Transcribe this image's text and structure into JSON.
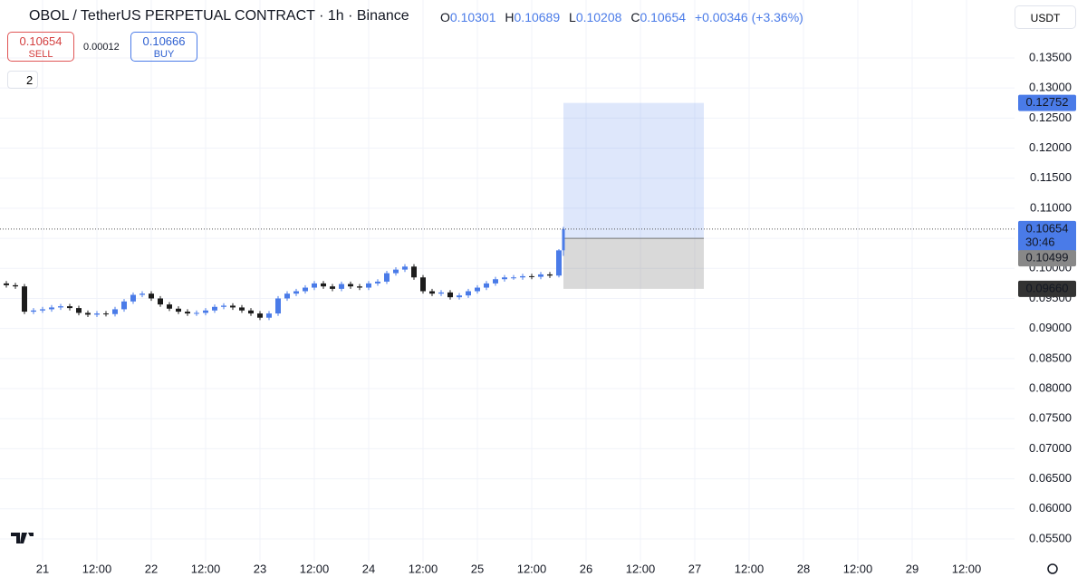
{
  "header": {
    "title": "OBOL / TetherUS PERPETUAL CONTRACT · 1h · Binance",
    "o_label": "O",
    "o": "0.10301",
    "h_label": "H",
    "h": "0.10689",
    "l_label": "L",
    "l": "0.10208",
    "c_label": "C",
    "c": "0.10654",
    "change": "+0.00346 (+3.36%)",
    "sell_price": "0.10654",
    "sell": "SELL",
    "spread": "0.00012",
    "buy_price": "0.10666",
    "buy": "BUY",
    "indicators": "2",
    "currency": "USDT"
  },
  "chart_data": {
    "type": "candlestick",
    "x": [
      -8,
      -6,
      -4,
      -2,
      0,
      2,
      4,
      6,
      8,
      10,
      12,
      14,
      16,
      18,
      20,
      22,
      24,
      26,
      28,
      30,
      32,
      34,
      36,
      38,
      40,
      42,
      44,
      46,
      48,
      50,
      52,
      54,
      56,
      58,
      60,
      62,
      64,
      66,
      68,
      70,
      72,
      74,
      76,
      78,
      80,
      82,
      84,
      86,
      88,
      90,
      92,
      94,
      96,
      98,
      100,
      102,
      104,
      106,
      108,
      110,
      112,
      114,
      115
    ],
    "open": [
      0.0975,
      0.0972,
      0.097,
      0.0928,
      0.093,
      0.0932,
      0.0935,
      0.0937,
      0.0934,
      0.0926,
      0.0923,
      0.0925,
      0.0924,
      0.0932,
      0.0945,
      0.0956,
      0.0958,
      0.095,
      0.094,
      0.0933,
      0.0928,
      0.0925,
      0.0926,
      0.093,
      0.0936,
      0.0938,
      0.0935,
      0.093,
      0.0925,
      0.0918,
      0.0925,
      0.095,
      0.0958,
      0.0962,
      0.0968,
      0.0975,
      0.097,
      0.0966,
      0.0974,
      0.097,
      0.0968,
      0.0975,
      0.0978,
      0.0992,
      0.0998,
      0.1003,
      0.0985,
      0.0962,
      0.0958,
      0.096,
      0.0952,
      0.0955,
      0.0962,
      0.0968,
      0.0975,
      0.0982,
      0.0985,
      0.0985,
      0.0987,
      0.0986,
      0.099,
      0.0988,
      0.10301
    ],
    "high": [
      0.0979,
      0.0976,
      0.0974,
      0.0934,
      0.0936,
      0.0939,
      0.0941,
      0.0941,
      0.0938,
      0.093,
      0.0929,
      0.0929,
      0.0936,
      0.0949,
      0.096,
      0.0962,
      0.0962,
      0.0954,
      0.0944,
      0.0937,
      0.0932,
      0.093,
      0.0934,
      0.094,
      0.0942,
      0.0942,
      0.0939,
      0.0934,
      0.0929,
      0.0929,
      0.0954,
      0.0962,
      0.0966,
      0.0972,
      0.0979,
      0.0979,
      0.0974,
      0.0978,
      0.0978,
      0.0974,
      0.0979,
      0.0982,
      0.0996,
      0.1002,
      0.1007,
      0.1007,
      0.0989,
      0.0966,
      0.0964,
      0.0964,
      0.0959,
      0.0966,
      0.0972,
      0.0979,
      0.0986,
      0.0989,
      0.0989,
      0.0991,
      0.0991,
      0.0994,
      0.0994,
      0.1032,
      0.10689
    ],
    "low": [
      0.0968,
      0.0966,
      0.0924,
      0.0924,
      0.0926,
      0.0928,
      0.0931,
      0.093,
      0.0922,
      0.0919,
      0.0919,
      0.092,
      0.092,
      0.0928,
      0.0941,
      0.0952,
      0.0946,
      0.0936,
      0.0929,
      0.0924,
      0.0921,
      0.0921,
      0.0922,
      0.0926,
      0.0932,
      0.0931,
      0.0926,
      0.0921,
      0.0914,
      0.0914,
      0.0921,
      0.0946,
      0.0954,
      0.0958,
      0.0964,
      0.0966,
      0.0962,
      0.0962,
      0.0966,
      0.0964,
      0.0964,
      0.0971,
      0.0974,
      0.0988,
      0.0994,
      0.0981,
      0.0958,
      0.0954,
      0.0954,
      0.0948,
      0.0948,
      0.0951,
      0.0958,
      0.0964,
      0.0971,
      0.0978,
      0.0981,
      0.0981,
      0.0982,
      0.0982,
      0.0984,
      0.0985,
      0.10208
    ],
    "close": [
      0.0972,
      0.097,
      0.0928,
      0.093,
      0.0932,
      0.0935,
      0.0937,
      0.0934,
      0.0926,
      0.0923,
      0.0925,
      0.0924,
      0.0932,
      0.0945,
      0.0956,
      0.0958,
      0.095,
      0.094,
      0.0933,
      0.0928,
      0.0925,
      0.0926,
      0.093,
      0.0936,
      0.0938,
      0.0935,
      0.093,
      0.0925,
      0.0918,
      0.0925,
      0.095,
      0.0958,
      0.0962,
      0.0968,
      0.0975,
      0.097,
      0.0966,
      0.0974,
      0.097,
      0.0968,
      0.0975,
      0.0978,
      0.0992,
      0.0998,
      0.1003,
      0.0985,
      0.0962,
      0.0958,
      0.096,
      0.0952,
      0.0955,
      0.0962,
      0.0968,
      0.0975,
      0.0982,
      0.0985,
      0.0985,
      0.0987,
      0.0986,
      0.099,
      0.0988,
      0.103,
      0.10654
    ],
    "up_color": "#4a7be8",
    "down_color": "#1c1c1c",
    "xlim": [
      -9.4,
      214.6
    ],
    "ylim": [
      0.05123,
      0.14464
    ],
    "xticks": [
      {
        "value": 0,
        "label": "21"
      },
      {
        "value": 12,
        "label": "12:00"
      },
      {
        "value": 24,
        "label": "22"
      },
      {
        "value": 36,
        "label": "12:00"
      },
      {
        "value": 48,
        "label": "23"
      },
      {
        "value": 60,
        "label": "12:00"
      },
      {
        "value": 72,
        "label": "24"
      },
      {
        "value": 84,
        "label": "12:00"
      },
      {
        "value": 96,
        "label": "25"
      },
      {
        "value": 108,
        "label": "12:00"
      },
      {
        "value": 120,
        "label": "26"
      },
      {
        "value": 132,
        "label": "12:00"
      },
      {
        "value": 144,
        "label": "27"
      },
      {
        "value": 156,
        "label": "12:00"
      },
      {
        "value": 168,
        "label": "28"
      },
      {
        "value": 180,
        "label": "12:00"
      },
      {
        "value": 192,
        "label": "29"
      },
      {
        "value": 204,
        "label": "12:00"
      }
    ],
    "yticks": [
      {
        "value": 0.055,
        "label": "0.05500"
      },
      {
        "value": 0.06,
        "label": "0.06000"
      },
      {
        "value": 0.065,
        "label": "0.06500"
      },
      {
        "value": 0.07,
        "label": "0.07000"
      },
      {
        "value": 0.075,
        "label": "0.07500"
      },
      {
        "value": 0.08,
        "label": "0.08000"
      },
      {
        "value": 0.085,
        "label": "0.08500"
      },
      {
        "value": 0.09,
        "label": "0.09000"
      },
      {
        "value": 0.095,
        "label": "0.09500"
      },
      {
        "value": 0.1,
        "label": "0.10000"
      },
      {
        "value": 0.105,
        "label": "0.10500"
      },
      {
        "value": 0.11,
        "label": "0.11000"
      },
      {
        "value": 0.115,
        "label": "0.11500"
      },
      {
        "value": 0.12,
        "label": "0.12000"
      },
      {
        "value": 0.125,
        "label": "0.12500"
      },
      {
        "value": 0.13,
        "label": "0.13000"
      },
      {
        "value": 0.135,
        "label": "0.13500"
      }
    ],
    "grid": true,
    "countdown": "30:46",
    "position": {
      "start": 115,
      "end": 146,
      "target": {
        "value": 0.12752,
        "label": "0.12752"
      },
      "entry": {
        "value": 0.10499,
        "label": "0.10499"
      },
      "stop": {
        "value": 0.0966,
        "label": "0.09660"
      }
    }
  }
}
